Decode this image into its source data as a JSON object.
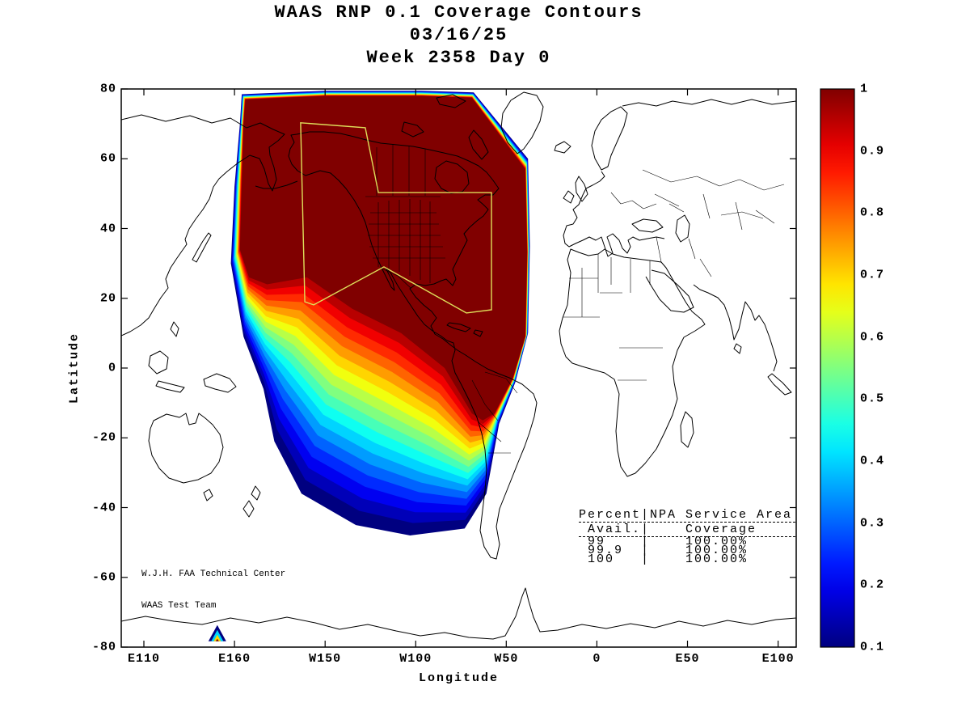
{
  "title": {
    "line1": "WAAS RNP 0.1 Coverage Contours",
    "line2": "03/16/25",
    "line3": "Week 2358 Day 0"
  },
  "axes": {
    "xlabel": "Longitude",
    "ylabel": "Latitude",
    "x_ticks": [
      {
        "label": "E110",
        "lon": 110
      },
      {
        "label": "E160",
        "lon": 160
      },
      {
        "label": "W150",
        "lon": 210
      },
      {
        "label": "W100",
        "lon": 260
      },
      {
        "label": "W50",
        "lon": 310
      },
      {
        "label": "0",
        "lon": 360
      },
      {
        "label": "E50",
        "lon": 410
      },
      {
        "label": "E100",
        "lon": 460
      }
    ],
    "y_ticks": [
      {
        "label": "80",
        "lat": 80
      },
      {
        "label": "60",
        "lat": 60
      },
      {
        "label": "40",
        "lat": 40
      },
      {
        "label": "20",
        "lat": 20
      },
      {
        "label": "0",
        "lat": 0
      },
      {
        "label": "-20",
        "lat": -20
      },
      {
        "label": "-40",
        "lat": -40
      },
      {
        "label": "-60",
        "lat": -60
      },
      {
        "label": "-80",
        "lat": -80
      }
    ]
  },
  "colorbar": {
    "min": 0.1,
    "max": 1.0,
    "ticks": [
      {
        "label": "1",
        "value": 1.0
      },
      {
        "label": "0.9",
        "value": 0.9
      },
      {
        "label": "0.8",
        "value": 0.8
      },
      {
        "label": "0.7",
        "value": 0.7
      },
      {
        "label": "0.6",
        "value": 0.6
      },
      {
        "label": "0.5",
        "value": 0.5
      },
      {
        "label": "0.4",
        "value": 0.4
      },
      {
        "label": "0.3",
        "value": 0.3
      },
      {
        "label": "0.2",
        "value": 0.2
      },
      {
        "label": "0.1",
        "value": 0.1
      }
    ]
  },
  "annotations": {
    "credit_line1": "W.J.H. FAA Technical Center",
    "credit_line2": "WAAS Test Team"
  },
  "table": {
    "lines": [
      {
        "text": "Percent|NPA Service Area",
        "u": true
      },
      {
        "text": " Avail.|    Coverage",
        "u": true
      },
      {
        "text": " 99    |    100.00%",
        "u": false
      },
      {
        "text": " 99.9  |    100.00%",
        "u": false
      },
      {
        "text": " 100   |    100.00%",
        "u": false
      }
    ]
  },
  "chart_data": {
    "type": "filled-contour-map",
    "projection": "equirectangular",
    "title": "WAAS RNP 0.1 Coverage Contours",
    "subtitle_date": "03/16/25",
    "subtitle_week": "Week 2358 Day 0",
    "xlabel": "Longitude",
    "ylabel": "Latitude",
    "colormap": "jet",
    "color_scale": {
      "min": 0.1,
      "max": 1.0,
      "tick_values": [
        1,
        0.9,
        0.8,
        0.7,
        0.6,
        0.5,
        0.4,
        0.3,
        0.2,
        0.1
      ]
    },
    "lon_axis_note": "longitudes in degrees east, unwrapped 110..460 (210=W150, 260=W100, 310=W50, 360=0, 410=E50, 460=E100)",
    "lon_range": [
      97.5,
      470
    ],
    "lat_range": [
      -80,
      80
    ],
    "coverage_region": {
      "outer_level": 0.1,
      "inner_level": 1.0,
      "bands": 18,
      "outer_polygon_lonlat": [
        [
          163,
          70
        ],
        [
          164,
          78.5
        ],
        [
          210,
          79.5
        ],
        [
          263,
          79.5
        ],
        [
          292,
          79
        ],
        [
          322,
          60
        ],
        [
          323,
          35
        ],
        [
          322,
          10
        ],
        [
          315,
          -4
        ],
        [
          306,
          -16
        ],
        [
          299,
          -36
        ],
        [
          287,
          -46
        ],
        [
          257,
          -48
        ],
        [
          227,
          -45
        ],
        [
          197,
          -36
        ],
        [
          182,
          -21
        ],
        [
          176,
          -6
        ],
        [
          165,
          9
        ],
        [
          158,
          30
        ],
        [
          160,
          52
        ]
      ],
      "inner_polygon_lonlat": [
        [
          165,
          70
        ],
        [
          166,
          77
        ],
        [
          210,
          78
        ],
        [
          263,
          78
        ],
        [
          291,
          77.5
        ],
        [
          320.5,
          57
        ],
        [
          321.5,
          33
        ],
        [
          320.5,
          9
        ],
        [
          313.5,
          -3
        ],
        [
          303.5,
          -13
        ],
        [
          297,
          -15
        ],
        [
          291,
          -13
        ],
        [
          276,
          0
        ],
        [
          252,
          10
        ],
        [
          225,
          17
        ],
        [
          200,
          26
        ],
        [
          178,
          24
        ],
        [
          168,
          26
        ],
        [
          163,
          34
        ],
        [
          164,
          53
        ]
      ]
    },
    "secondary_region": {
      "center_lonlat": [
        150.5,
        -76
      ],
      "levels": [
        0.1,
        0.4,
        0.7,
        1.0
      ]
    },
    "service_area_outline_lonlat": [
      [
        196.5,
        70.3
      ],
      [
        232.2,
        68.9
      ],
      [
        239.4,
        50.3
      ],
      [
        301.8,
        50.3
      ],
      [
        301.8,
        16.7
      ],
      [
        288,
        15.8
      ],
      [
        242.5,
        29
      ],
      [
        203.7,
        18.1
      ],
      [
        198.8,
        19
      ]
    ],
    "service_area_table": {
      "columns": [
        "Percent Avail.",
        "NPA Service Area Coverage"
      ],
      "rows": [
        [
          "99",
          "100.00%"
        ],
        [
          "99.9",
          "100.00%"
        ],
        [
          "100",
          "100.00%"
        ]
      ]
    },
    "credit": [
      "W.J.H. FAA Technical Center",
      "WAAS Test Team"
    ]
  }
}
